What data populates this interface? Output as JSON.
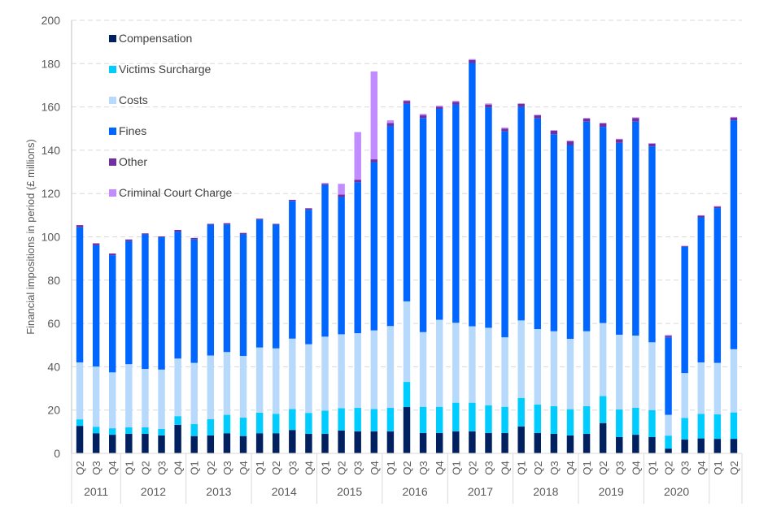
{
  "chart_data": {
    "type": "bar",
    "stacked": true,
    "title": "",
    "xlabel": "",
    "ylabel": "Financial impositions in period (£ millions)",
    "ylim": [
      0,
      200
    ],
    "yticks": [
      0,
      20,
      40,
      60,
      80,
      100,
      120,
      140,
      160,
      180,
      200
    ],
    "grid": "horizontal dashed",
    "legend_position": "top-left",
    "year_groups": [
      {
        "label": "2011",
        "count": 3
      },
      {
        "label": "2012",
        "count": 4
      },
      {
        "label": "2013",
        "count": 4
      },
      {
        "label": "2014",
        "count": 4
      },
      {
        "label": "2015",
        "count": 4
      },
      {
        "label": "2016",
        "count": 4
      },
      {
        "label": "2017",
        "count": 4
      },
      {
        "label": "2018",
        "count": 4
      },
      {
        "label": "2019",
        "count": 4
      },
      {
        "label": "2020",
        "count": 4
      },
      {
        "label": "",
        "count": 2
      }
    ],
    "categories": [
      "Q2",
      "Q3",
      "Q4",
      "Q1",
      "Q2",
      "Q3",
      "Q4",
      "Q1",
      "Q2",
      "Q3",
      "Q4",
      "Q1",
      "Q2",
      "Q3",
      "Q4",
      "Q1",
      "Q2",
      "Q3",
      "Q4",
      "Q1",
      "Q2",
      "Q3",
      "Q4",
      "Q1",
      "Q2",
      "Q3",
      "Q4",
      "Q1",
      "Q2",
      "Q3",
      "Q4",
      "Q1",
      "Q2",
      "Q3",
      "Q4",
      "Q1",
      "Q2",
      "Q3",
      "Q4",
      "Q1",
      "Q2"
    ],
    "series": [
      {
        "name": "Compensation",
        "color": "#002060",
        "values": [
          12.7,
          9.3,
          8.6,
          9.0,
          9.0,
          8.3,
          13.2,
          8.0,
          8.3,
          9.3,
          8.0,
          9.3,
          9.3,
          10.8,
          9.0,
          9.0,
          10.6,
          10.2,
          10.2,
          10.2,
          21.4,
          9.4,
          9.4,
          10.2,
          10.2,
          9.4,
          9.4,
          12.4,
          9.4,
          9.0,
          8.3,
          9.0,
          14.0,
          7.5,
          8.6,
          7.5,
          2.2,
          6.4,
          6.9,
          6.7,
          6.7
        ]
      },
      {
        "name": "Victims Surcharge",
        "color": "#00CCFF",
        "values": [
          3.0,
          3.0,
          3.0,
          3.0,
          3.0,
          3.0,
          4.0,
          5.5,
          7.5,
          8.5,
          8.5,
          9.5,
          9.0,
          9.7,
          9.7,
          10.7,
          10.3,
          10.8,
          10.3,
          10.8,
          11.6,
          12.1,
          12.1,
          13.2,
          13.2,
          12.8,
          12.1,
          13.2,
          13.2,
          12.8,
          12.1,
          12.8,
          12.5,
          12.8,
          12.5,
          12.5,
          6.0,
          10.0,
          11.3,
          11.3,
          12.2
        ]
      },
      {
        "name": "Costs",
        "color": "#B7DAFC",
        "values": [
          26.3,
          27.8,
          25.8,
          29.2,
          27.0,
          27.4,
          26.6,
          28.3,
          29.4,
          29.0,
          28.5,
          30.1,
          30.2,
          32.5,
          31.7,
          34.2,
          34.1,
          34.5,
          36.3,
          37.8,
          37.2,
          34.5,
          40.2,
          36.9,
          35.3,
          35.8,
          32.1,
          35.8,
          34.8,
          34.6,
          32.5,
          34.6,
          33.7,
          34.5,
          33.3,
          31.3,
          9.6,
          20.7,
          23.8,
          23.8,
          29.2
        ]
      },
      {
        "name": "Fines",
        "color": "#0066FF",
        "values": [
          62.4,
          56.0,
          54.1,
          56.8,
          62.1,
          61.1,
          58.6,
          57.0,
          60.4,
          58.9,
          56.1,
          59.1,
          57.1,
          63.6,
          62.1,
          70.1,
          63.4,
          69.7,
          77.7,
          92.4,
          91.2,
          98.9,
          97.4,
          100.7,
          121.6,
          101.7,
          95.1,
          98.6,
          97.3,
          91.0,
          89.5,
          96.8,
          90.6,
          88.6,
          98.8,
          90.5,
          35.8,
          58.3,
          67.0,
          71.5,
          105.7
        ]
      },
      {
        "name": "Other",
        "color": "#7030A0",
        "values": [
          1.0,
          0.9,
          0.8,
          0.8,
          0.5,
          0.4,
          0.8,
          0.7,
          0.4,
          0.6,
          0.7,
          0.4,
          0.4,
          0.5,
          0.7,
          0.5,
          1.1,
          1.2,
          1.3,
          1.4,
          1.4,
          1.3,
          1.0,
          1.3,
          1.4,
          1.4,
          1.3,
          1.4,
          1.4,
          1.6,
          1.7,
          1.4,
          1.6,
          1.6,
          1.7,
          1.2,
          0.7,
          0.3,
          0.8,
          0.7,
          1.3
        ]
      },
      {
        "name": "Criminal Court Charge",
        "color": "#C08CFF",
        "values": [
          0,
          0,
          0,
          0,
          0,
          0,
          0,
          0,
          0,
          0,
          0,
          0,
          0,
          0,
          0,
          0.4,
          5.0,
          22.0,
          40.6,
          1.2,
          0.3,
          0.6,
          0.5,
          0.5,
          0.4,
          0.5,
          0.5,
          0.3,
          0.3,
          0.3,
          0.4,
          0.3,
          0.3,
          0.3,
          0.3,
          0.3,
          0.4,
          0.2,
          0.2,
          0.2,
          0.3
        ]
      }
    ]
  }
}
